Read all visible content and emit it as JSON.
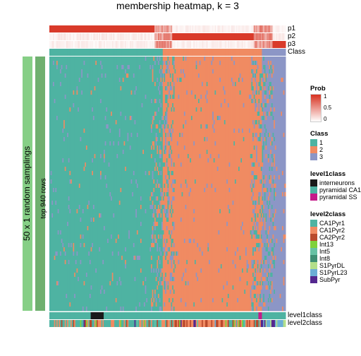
{
  "title": "membership heatmap, k = 3",
  "leftOuterLabel": "50 x 1 random samplings",
  "leftInnerLabel": "top 940 rows",
  "topAnnotations": [
    {
      "key": "p1"
    },
    {
      "key": "p2"
    },
    {
      "key": "p3"
    },
    {
      "key": "Class"
    }
  ],
  "bottomAnnotations": [
    {
      "key": "level1class"
    },
    {
      "key": "level2class"
    }
  ],
  "legends": {
    "prob": {
      "header": "Prob",
      "gradient": {
        "top": "#d7301f",
        "bottom": "#ffffff"
      },
      "ticks": [
        "1",
        "0.5",
        "0"
      ]
    },
    "class": {
      "header": "Class",
      "items": [
        {
          "label": "1",
          "color": "#4eb3a2"
        },
        {
          "label": "2",
          "color": "#f08b62"
        },
        {
          "label": "3",
          "color": "#8c96c6"
        }
      ]
    },
    "level1": {
      "header": "level1class",
      "items": [
        {
          "label": "interneurons",
          "color": "#1a1a1a"
        },
        {
          "label": "pyramidal CA1",
          "color": "#4eb3a2"
        },
        {
          "label": "pyramidal SS",
          "color": "#c51b8a"
        }
      ]
    },
    "level2": {
      "header": "level2class",
      "items": [
        {
          "label": "CA1Pyr1",
          "color": "#4eb3a2"
        },
        {
          "label": "CA1Pyr2",
          "color": "#f08b62"
        },
        {
          "label": "CA2Pyr2",
          "color": "#b94a2c"
        },
        {
          "label": "Int13",
          "color": "#7fd13b"
        },
        {
          "label": "Int5",
          "color": "#66c2a4"
        },
        {
          "label": "Int8",
          "color": "#3d8f73"
        },
        {
          "label": "S1PyrDL",
          "color": "#b2df8a"
        },
        {
          "label": "S1PyrL23",
          "color": "#6baed6"
        },
        {
          "label": "SubPyr",
          "color": "#54278f"
        }
      ]
    }
  },
  "layout": {
    "plotX": 70,
    "plotY": 80,
    "plotW": 335,
    "plotH": 360,
    "topAnnY": 36,
    "topAnnH": 10,
    "leftOuterX": 32,
    "leftOuterW": 14,
    "leftInnerX": 50,
    "leftInnerW": 14,
    "bottomAnnH": 10,
    "split1": 0.48,
    "split2": 0.9
  },
  "colors": {
    "cls1": "#4eb3a2",
    "cls2": "#f08b62",
    "cls3": "#8c96c6",
    "probHigh": "#d7301f",
    "probMid": "#ffd6c8",
    "white": "#ffffff",
    "leftBar": "#86cf86",
    "l1dark": "#1a1a1a",
    "l1pink": "#c51b8a"
  }
}
